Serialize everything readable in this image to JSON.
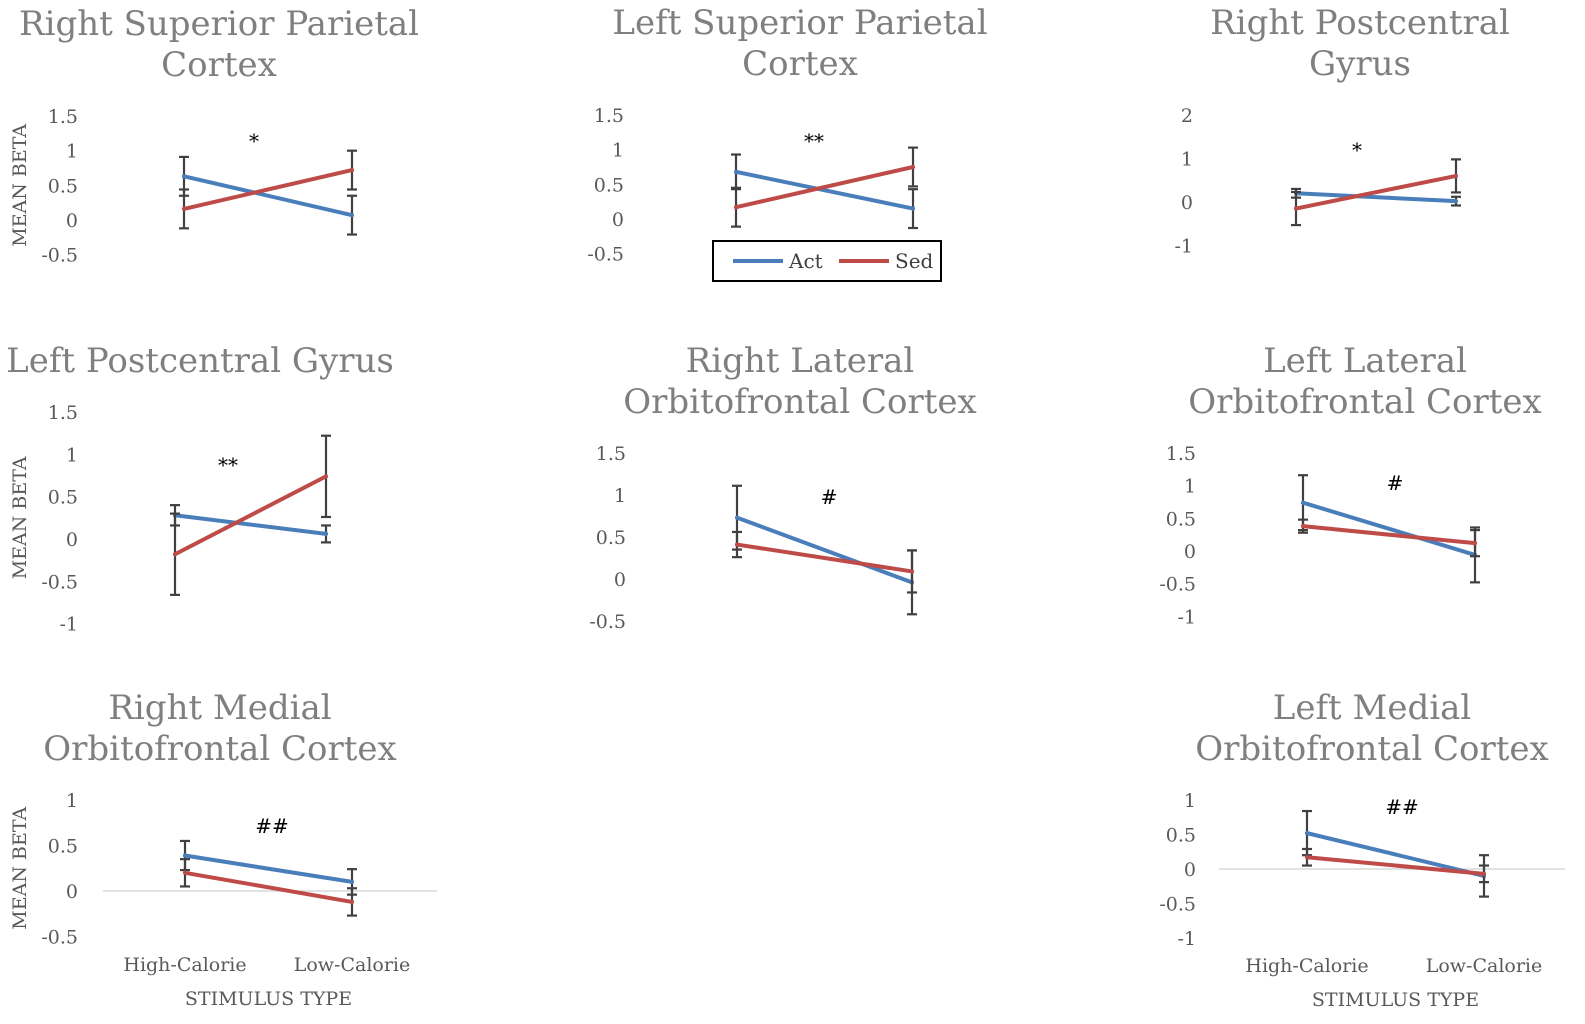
{
  "chart_data": [
    {
      "type": "line",
      "title": "Right Superior Parietal Cortex",
      "ylabel": "MEAN BETA",
      "xlabel": "",
      "categories": [
        "High-Calorie",
        "Low-Calorie"
      ],
      "show_category_labels": false,
      "yticks": [
        1.5,
        1,
        0.5,
        0,
        -0.5
      ],
      "ylim": [
        -0.5,
        1.5
      ],
      "annotation": "*",
      "series": [
        {
          "name": "Act",
          "values": [
            0.63,
            0.07
          ],
          "errors": [
            0.28,
            0.28
          ]
        },
        {
          "name": "Sed",
          "values": [
            0.16,
            0.72
          ],
          "errors": [
            0.28,
            0.28
          ]
        }
      ]
    },
    {
      "type": "line",
      "title": "Left Superior Parietal Cortex",
      "ylabel": "",
      "xlabel": "",
      "categories": [
        "High-Calorie",
        "Low-Calorie"
      ],
      "show_category_labels": false,
      "yticks": [
        1.5,
        1,
        0.5,
        0,
        -0.5
      ],
      "ylim": [
        -0.5,
        1.5
      ],
      "annotation": "**",
      "legend": {
        "position": "bottom"
      },
      "series": [
        {
          "name": "Act",
          "values": [
            0.68,
            0.15
          ],
          "errors": [
            0.25,
            0.28
          ]
        },
        {
          "name": "Sed",
          "values": [
            0.17,
            0.75
          ],
          "errors": [
            0.28,
            0.28
          ]
        }
      ]
    },
    {
      "type": "line",
      "title": "Right Postcentral Gyrus",
      "ylabel": "",
      "xlabel": "",
      "categories": [
        "High-Calorie",
        "Low-Calorie"
      ],
      "show_category_labels": false,
      "yticks": [
        2,
        1,
        0,
        -1
      ],
      "ylim": [
        -1,
        2
      ],
      "annotation": "*",
      "series": [
        {
          "name": "Act",
          "values": [
            0.2,
            0.02
          ],
          "errors": [
            0.1,
            0.1
          ]
        },
        {
          "name": "Sed",
          "values": [
            -0.15,
            0.6
          ],
          "errors": [
            0.38,
            0.38
          ]
        }
      ]
    },
    {
      "type": "line",
      "title": "Left Postcentral Gyrus",
      "ylabel": "MEAN BETA",
      "xlabel": "",
      "categories": [
        "High-Calorie",
        "Low-Calorie"
      ],
      "show_category_labels": false,
      "yticks": [
        1.5,
        1,
        0.5,
        0,
        -0.5,
        -1
      ],
      "ylim": [
        -1,
        1.5
      ],
      "annotation": "**",
      "series": [
        {
          "name": "Act",
          "values": [
            0.28,
            0.06
          ],
          "errors": [
            0.12,
            0.1
          ]
        },
        {
          "name": "Sed",
          "values": [
            -0.18,
            0.74
          ],
          "errors": [
            0.48,
            0.48
          ]
        }
      ]
    },
    {
      "type": "line",
      "title": "Right Lateral Orbitofrontal Cortex",
      "ylabel": "",
      "xlabel": "",
      "categories": [
        "High-Calorie",
        "Low-Calorie"
      ],
      "show_category_labels": false,
      "yticks": [
        1.5,
        1,
        0.5,
        0,
        -0.5
      ],
      "ylim": [
        -0.5,
        1.5
      ],
      "annotation": "#",
      "series": [
        {
          "name": "Act",
          "values": [
            0.73,
            -0.04
          ],
          "errors": [
            0.38,
            0.38
          ]
        },
        {
          "name": "Sed",
          "values": [
            0.41,
            0.09
          ],
          "errors": [
            0.15,
            0.25
          ]
        }
      ]
    },
    {
      "type": "line",
      "title": "Left Lateral Orbitofrontal Cortex",
      "ylabel": "",
      "xlabel": "",
      "categories": [
        "High-Calorie",
        "Low-Calorie"
      ],
      "show_category_labels": false,
      "yticks": [
        1.5,
        1,
        0.5,
        0,
        -0.5,
        -1
      ],
      "ylim": [
        -1,
        1.5
      ],
      "annotation": "#",
      "series": [
        {
          "name": "Act",
          "values": [
            0.74,
            -0.06
          ],
          "errors": [
            0.42,
            0.42
          ]
        },
        {
          "name": "Sed",
          "values": [
            0.38,
            0.12
          ],
          "errors": [
            0.1,
            0.2
          ]
        }
      ]
    },
    {
      "type": "line",
      "title": "Right Medial Orbitofrontal Cortex",
      "ylabel": "MEAN BETA",
      "xlabel": "STIMULUS TYPE",
      "categories": [
        "High-Calorie",
        "Low-Calorie"
      ],
      "show_category_labels": true,
      "yticks": [
        1,
        0.5,
        0,
        -0.5
      ],
      "ylim": [
        -0.5,
        1
      ],
      "annotation": "##",
      "series": [
        {
          "name": "Act",
          "values": [
            0.39,
            0.1
          ],
          "errors": [
            0.16,
            0.14
          ]
        },
        {
          "name": "Sed",
          "values": [
            0.2,
            -0.12
          ],
          "errors": [
            0.15,
            0.15
          ]
        }
      ]
    },
    {
      "type": "line",
      "title": "Left Medial Orbitofrontal Cortex",
      "ylabel": "",
      "xlabel": "STIMULUS TYPE",
      "categories": [
        "High-Calorie",
        "Low-Calorie"
      ],
      "show_category_labels": true,
      "yticks": [
        1,
        0.5,
        0,
        -0.5,
        -1
      ],
      "ylim": [
        -1,
        1
      ],
      "annotation": "##",
      "series": [
        {
          "name": "Act",
          "values": [
            0.52,
            -0.1
          ],
          "errors": [
            0.32,
            0.3
          ]
        },
        {
          "name": "Sed",
          "values": [
            0.17,
            -0.07
          ],
          "errors": [
            0.12,
            0.12
          ]
        }
      ]
    }
  ],
  "colors": {
    "Act": "#4a7ebb",
    "Sed": "#be4b48",
    "error_bar": "#404040",
    "zero_line": "#d9d9d9"
  }
}
